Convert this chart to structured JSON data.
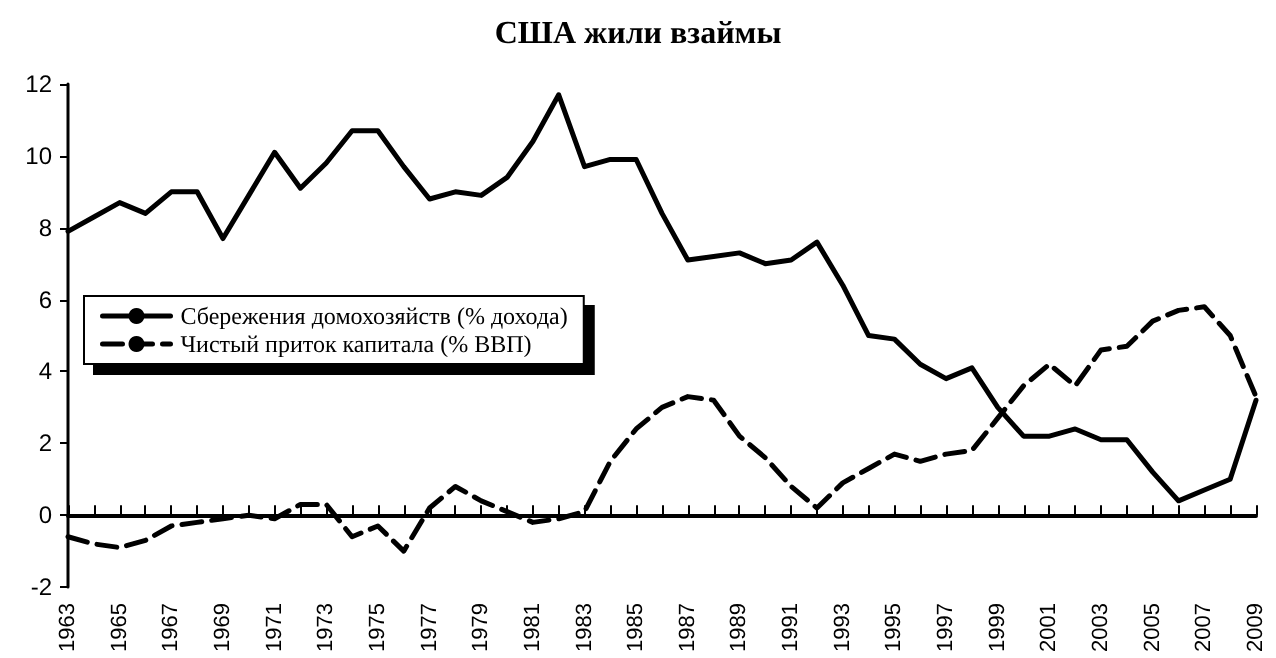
{
  "chart_data": {
    "type": "line",
    "title": "США жили взаймы",
    "categories": [
      "1963",
      null,
      "1965",
      null,
      "1967",
      null,
      "1969",
      null,
      "1971",
      null,
      "1973",
      null,
      "1975",
      null,
      "1977",
      null,
      "1979",
      null,
      "1981",
      null,
      "1983",
      null,
      "1985",
      null,
      "1987",
      null,
      "1989",
      null,
      "1991",
      null,
      "1993",
      null,
      "1995",
      null,
      "1997",
      null,
      "1999",
      null,
      "2001",
      null,
      "2003",
      null,
      "2005",
      null,
      "2007",
      null,
      "2009"
    ],
    "series": [
      {
        "name": "Сбережения домохозяйств (% дохода)",
        "color": "#000000",
        "line_style": "solid",
        "values": [
          7.9,
          8.3,
          8.7,
          8.4,
          9.0,
          9.0,
          7.7,
          8.9,
          10.1,
          9.1,
          9.8,
          10.7,
          10.7,
          9.7,
          8.8,
          9.0,
          8.9,
          9.4,
          10.4,
          11.7,
          9.7,
          9.9,
          9.9,
          8.4,
          7.1,
          7.2,
          7.3,
          7.0,
          7.1,
          7.6,
          6.4,
          5.0,
          4.9,
          4.2,
          3.8,
          4.1,
          3.0,
          2.2,
          2.2,
          2.4,
          2.1,
          2.1,
          1.2,
          0.4,
          0.7,
          1.0,
          3.2
        ]
      },
      {
        "name": "Чистый приток капитала (% ВВП)",
        "color": "#000000",
        "line_style": "dashed",
        "values": [
          -0.6,
          -0.8,
          -0.9,
          -0.7,
          -0.3,
          -0.2,
          -0.1,
          0.0,
          -0.1,
          0.3,
          0.3,
          -0.6,
          -0.3,
          -1.0,
          0.2,
          0.8,
          0.4,
          0.1,
          -0.2,
          -0.1,
          0.1,
          1.5,
          2.4,
          3.0,
          3.3,
          3.2,
          2.2,
          1.6,
          0.8,
          0.2,
          0.9,
          1.3,
          1.7,
          1.5,
          1.7,
          1.8,
          2.7,
          3.6,
          4.2,
          3.6,
          4.6,
          4.7,
          5.4,
          5.7,
          5.8,
          5.0,
          3.3
        ]
      }
    ],
    "ylim": [
      -2,
      12
    ],
    "yticks": [
      -2,
      0,
      2,
      4,
      6,
      8,
      10,
      12
    ],
    "legend": "left",
    "marker": "none"
  }
}
